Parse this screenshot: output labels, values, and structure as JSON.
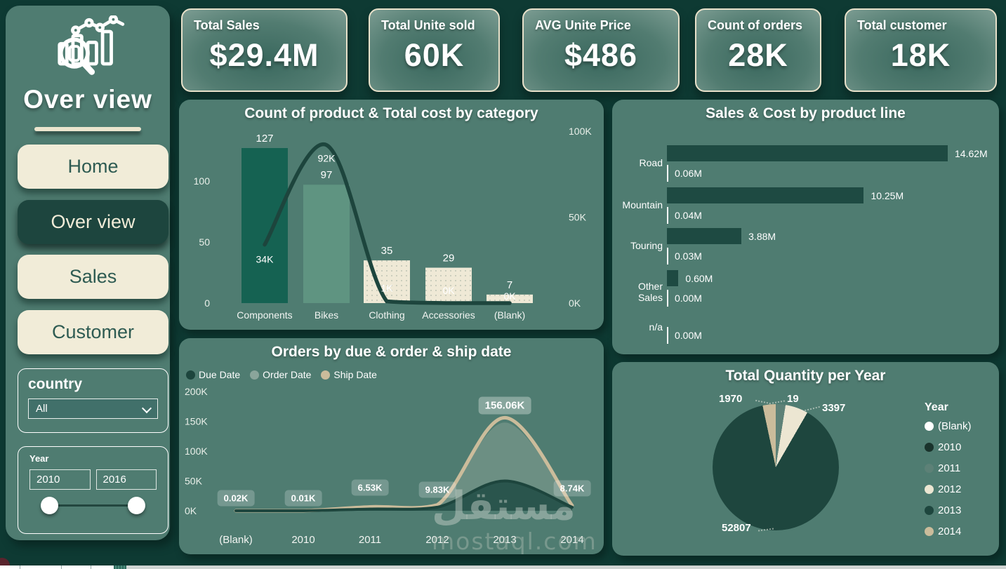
{
  "sidebar": {
    "title": "Over view",
    "nav": [
      {
        "label": "Home",
        "active": false
      },
      {
        "label": "Over view",
        "active": true
      },
      {
        "label": "Sales",
        "active": false
      },
      {
        "label": "Customer",
        "active": false
      }
    ],
    "country": {
      "label": "country",
      "value": "All"
    },
    "year": {
      "label": "Year",
      "from": "2010",
      "to": "2016"
    }
  },
  "kpis": [
    {
      "title": "Total Sales",
      "value": "$29.4M"
    },
    {
      "title": "Total Unite sold",
      "value": "60K"
    },
    {
      "title": "AVG Unite Price",
      "value": "$486"
    },
    {
      "title": "Count of orders",
      "value": "28K"
    },
    {
      "title": "Total customer",
      "value": "18K"
    }
  ],
  "watermark": {
    "arabic": "مستقل",
    "latin": "mostaql.com"
  },
  "colors": {
    "page_bg": "#0e3a33",
    "panel_bg": "#4f7c71",
    "cream": "#f1ecd8",
    "dark_teal": "#1d453e",
    "bar_dark_green": "#156252",
    "bar_sage": "#5f9481",
    "tan": "#cbbc9b",
    "white": "#ffffff"
  },
  "chart_data": [
    {
      "id": "category_combo",
      "type": "bar",
      "title": "Count of product & Total cost by category",
      "categories": [
        "Components",
        "Bikes",
        "Clothing",
        "Accessories",
        "(Blank)"
      ],
      "bar_series": {
        "name": "Count of product",
        "values": [
          127,
          97,
          35,
          29,
          7
        ],
        "labels": [
          "127",
          "97",
          "35",
          "29",
          "7"
        ],
        "colors": [
          "#156252",
          "#5f9481",
          "#efe9d6",
          "#efe9d6",
          "#efe9d6"
        ]
      },
      "line_series": {
        "name": "Total cost",
        "values_k": [
          34,
          92,
          1,
          0,
          0
        ],
        "labels": [
          "34K",
          "92K",
          "1K",
          "0K",
          "0K"
        ],
        "color": "#1d453d"
      },
      "left_axis": {
        "ticks": [
          100,
          50,
          0
        ],
        "ylim": [
          0,
          130
        ]
      },
      "right_axis": {
        "ticks": [
          "100K",
          "50K",
          "0K"
        ],
        "tick_values_k": [
          100,
          50,
          0
        ],
        "ylim_k": [
          0,
          118
        ]
      }
    },
    {
      "id": "orders_by_date",
      "type": "area",
      "title": "Orders by due & order & ship date",
      "x": [
        "(Blank)",
        "2010",
        "2011",
        "2012",
        "2013",
        "2014"
      ],
      "y_ticks": [
        "200K",
        "150K",
        "100K",
        "50K",
        "0K"
      ],
      "ylim_k": [
        0,
        200
      ],
      "legend_position": "top-left",
      "series": [
        {
          "name": "Due Date",
          "color": "#1d453d",
          "fill": "#27524a",
          "values_k": [
            0.01,
            0.01,
            3.0,
            6.0,
            50,
            6.0
          ]
        },
        {
          "name": "Order Date",
          "color": "#8aa59b",
          "fill": "#6f9084",
          "values_k": [
            0.02,
            0.01,
            6.2,
            9.3,
            148,
            8.3
          ]
        },
        {
          "name": "Ship Date",
          "color": "#cbbc9b",
          "fill": "none",
          "values_k": [
            0.02,
            0.01,
            6.53,
            9.83,
            156.06,
            8.74
          ],
          "labels": [
            "0.02K",
            "0.01K",
            "6.53K",
            "9.83K",
            "156.06K",
            "8.74K"
          ]
        }
      ]
    },
    {
      "id": "sales_cost",
      "type": "bar",
      "title": "Sales & Cost by product line",
      "orientation": "horizontal",
      "categories": [
        "Road",
        "Mountain",
        "Touring",
        "Other Sales",
        "n/a"
      ],
      "series": [
        {
          "name": "Sales",
          "color": "#1e4a42",
          "values_m": [
            14.62,
            10.25,
            3.88,
            0.6,
            0
          ],
          "labels": [
            "14.62M",
            "10.25M",
            "3.88M",
            "0.60M",
            ""
          ]
        },
        {
          "name": "Cost",
          "color": "#1e4a42",
          "values_m": [
            0.06,
            0.04,
            0.03,
            0.0,
            0.0
          ],
          "labels": [
            "0.06M",
            "0.04M",
            "0.03M",
            "0.00M",
            "0.00M"
          ]
        }
      ],
      "xlim_m": [
        0,
        16
      ]
    },
    {
      "id": "quantity_pie",
      "type": "pie",
      "title": "Total Quantity per Year",
      "legend_title": "Year",
      "slices": [
        {
          "label": "(Blank)",
          "color": "#ffffff",
          "value": null
        },
        {
          "label": "2010",
          "color": "#1a332c",
          "value": null
        },
        {
          "label": "2011",
          "color": "#5d8177",
          "value": 19,
          "data_label": "19",
          "display_deg": [
            0,
            9
          ]
        },
        {
          "label": "2012",
          "color": "#ece6d2",
          "value": 3397,
          "data_label": "3397",
          "display_deg": [
            9,
            30
          ]
        },
        {
          "label": "2013",
          "color": "#1e463e",
          "value": 52807,
          "data_label": "52807",
          "display_deg": [
            30,
            348
          ]
        },
        {
          "label": "2014",
          "color": "#cbbc9b",
          "value": 1970,
          "data_label": "1970",
          "display_deg": [
            348,
            360
          ]
        }
      ]
    }
  ]
}
